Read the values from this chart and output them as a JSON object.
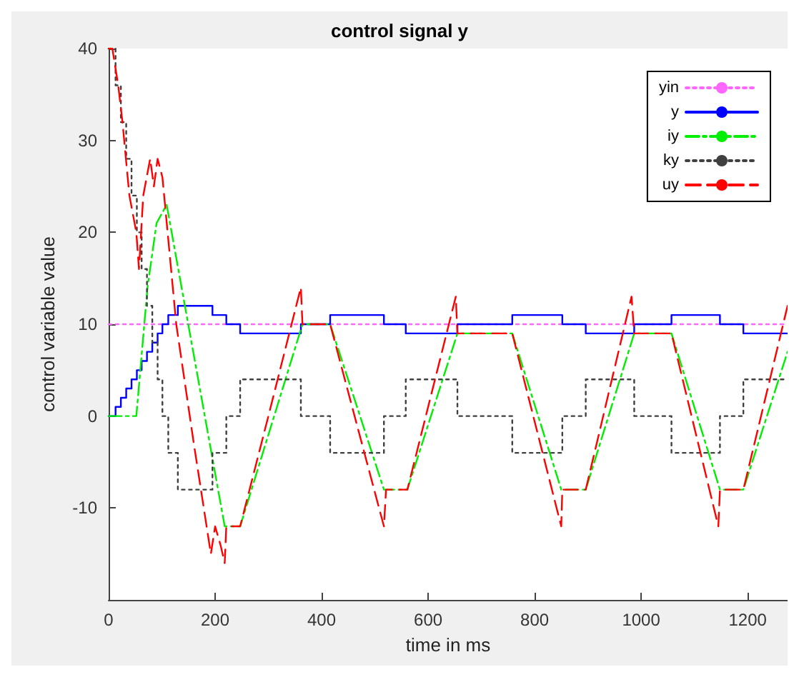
{
  "chart_data": {
    "type": "line",
    "title": "control signal y",
    "xlabel": "time in ms",
    "ylabel": "control variable value",
    "xlim": [
      0,
      1275
    ],
    "xticks": [
      0,
      200,
      400,
      600,
      800,
      1000,
      1200
    ],
    "ylim": [
      -20,
      40
    ],
    "yticks": [
      -10,
      0,
      10,
      20,
      30,
      40
    ],
    "grid": false,
    "legend": "top right",
    "marker": "none",
    "series": [
      {
        "name": "yin",
        "color": "#ff66ff",
        "line_style": "dotted",
        "x": [
          0,
          1275
        ],
        "values": [
          10,
          10
        ]
      },
      {
        "name": "y",
        "color": "#0000ff",
        "line_style": "solid",
        "x": [
          0,
          13,
          13,
          23,
          23,
          33,
          33,
          43,
          43,
          53,
          53,
          62,
          62,
          72,
          72,
          82,
          82,
          92,
          92,
          101,
          101,
          112,
          112,
          130,
          130,
          195,
          195,
          221,
          221,
          247,
          247,
          361,
          361,
          416,
          416,
          517,
          517,
          558,
          558,
          655,
          655,
          758,
          758,
          852,
          852,
          896,
          896,
          987,
          987,
          1057,
          1057,
          1148,
          1148,
          1192,
          1192,
          1275
        ],
        "values": [
          0,
          0,
          1,
          1,
          2,
          2,
          3,
          3,
          4,
          4,
          5,
          5,
          6,
          6,
          7,
          7,
          8,
          8,
          9,
          9,
          10,
          10,
          11,
          11,
          12,
          12,
          11,
          11,
          10,
          10,
          9,
          9,
          10,
          10,
          11,
          11,
          10,
          10,
          9,
          9,
          10,
          10,
          11,
          11,
          10,
          10,
          9,
          9,
          10,
          10,
          11,
          11,
          10,
          10,
          9,
          9
        ]
      },
      {
        "name": "iy",
        "color": "#00ee00",
        "line_style": "dashdot",
        "x": [
          0,
          52,
          73,
          90,
          109,
          218,
          247,
          364,
          416,
          517,
          561,
          655,
          758,
          850,
          896,
          987,
          1057,
          1148,
          1192,
          1275
        ],
        "values": [
          0,
          0,
          14,
          21,
          23,
          -12,
          -12,
          10,
          10,
          -8,
          -8,
          9,
          9,
          -8,
          -8,
          9,
          9,
          -8,
          -8,
          7
        ]
      },
      {
        "name": "ky",
        "color": "#404040",
        "line_style": "dotted",
        "x": [
          0,
          13,
          13,
          23,
          23,
          33,
          33,
          43,
          43,
          53,
          53,
          62,
          62,
          72,
          72,
          82,
          82,
          92,
          92,
          101,
          101,
          112,
          112,
          130,
          130,
          195,
          195,
          221,
          221,
          247,
          247,
          361,
          361,
          416,
          416,
          517,
          517,
          558,
          558,
          655,
          655,
          758,
          758,
          852,
          852,
          896,
          896,
          987,
          987,
          1057,
          1057,
          1148,
          1148,
          1192,
          1192,
          1275
        ],
        "values": [
          40,
          40,
          36,
          36,
          32,
          32,
          28,
          28,
          24,
          24,
          20,
          20,
          16,
          16,
          12,
          12,
          8,
          8,
          4,
          4,
          0,
          0,
          -4,
          -4,
          -8,
          -8,
          -4,
          -4,
          0,
          0,
          4,
          4,
          0,
          0,
          -4,
          -4,
          0,
          0,
          4,
          4,
          0,
          0,
          -4,
          -4,
          0,
          0,
          4,
          4,
          0,
          0,
          -4,
          -4,
          0,
          0,
          4,
          4
        ]
      },
      {
        "name": "uy",
        "color": "#ff0000",
        "line_style": "dashed",
        "x": [
          0,
          7,
          18,
          26,
          39,
          52,
          57,
          65,
          78,
          85,
          92,
          101,
          127,
          160,
          192,
          200,
          210,
          218,
          221,
          247,
          300,
          361,
          364,
          416,
          517,
          521,
          561,
          652,
          655,
          758,
          850,
          852,
          896,
          982,
          987,
          1057,
          1145,
          1148,
          1192,
          1275
        ],
        "values": [
          40,
          40,
          36,
          32,
          24,
          20,
          16,
          24,
          28,
          25,
          28,
          26,
          10,
          -3,
          -15,
          -12,
          -14,
          -16,
          -12,
          -12,
          0,
          14,
          10,
          10,
          -12,
          -8,
          -8,
          13,
          9,
          9,
          -12,
          -8,
          -8,
          13,
          9,
          9,
          -12,
          -8,
          -8,
          12
        ]
      }
    ]
  }
}
